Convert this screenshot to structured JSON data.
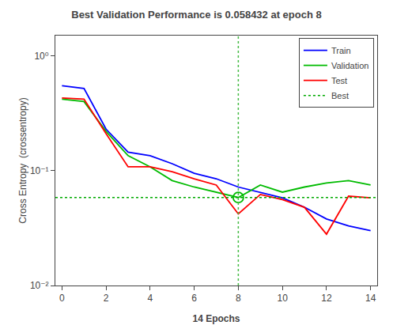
{
  "chart_data": {
    "type": "line",
    "title": "Best Validation Performance is 0.058432 at epoch 8",
    "xlabel": "14 Epochs",
    "ylabel": "Cross Entropy  (crossentropy)",
    "x": [
      0,
      1,
      2,
      3,
      4,
      5,
      6,
      7,
      8,
      9,
      10,
      11,
      12,
      13,
      14
    ],
    "series": [
      {
        "name": "Train",
        "color": "#0000FF",
        "line_style": "solid",
        "values": [
          0.55,
          0.52,
          0.23,
          0.145,
          0.135,
          0.115,
          0.095,
          0.085,
          0.072,
          0.065,
          0.058,
          0.048,
          0.038,
          0.033,
          0.03
        ]
      },
      {
        "name": "Validation",
        "color": "#00BB00",
        "line_style": "solid",
        "values": [
          0.42,
          0.4,
          0.22,
          0.135,
          0.108,
          0.082,
          0.072,
          0.065,
          0.058432,
          0.075,
          0.065,
          0.072,
          0.078,
          0.082,
          0.075
        ]
      },
      {
        "name": "Test",
        "color": "#FF0000",
        "line_style": "solid",
        "values": [
          0.43,
          0.42,
          0.21,
          0.108,
          0.108,
          0.098,
          0.085,
          0.075,
          0.042,
          0.062,
          0.056,
          0.048,
          0.028,
          0.06,
          0.058
        ]
      }
    ],
    "hline": {
      "name": "Best",
      "y": 0.058432,
      "color": "#00AA00",
      "line_style": "dotted"
    },
    "vline": {
      "x": 8,
      "color": "#44BB44",
      "line_style": "dotted"
    },
    "highlight": {
      "x": 8,
      "y": 0.058432,
      "color": "#00BB00",
      "marker": "circle-open"
    },
    "log": "y",
    "xlim": [
      -0.3,
      14.3
    ],
    "xticks": [
      0,
      2,
      4,
      6,
      8,
      10,
      12,
      14
    ],
    "ylim": [
      0.01,
      1.5
    ],
    "yticks": [
      {
        "value": 0.01,
        "label": "10⁻²"
      },
      {
        "value": 0.1,
        "label": "10⁻¹"
      },
      {
        "value": 1,
        "label": "10⁰"
      }
    ],
    "grid": false,
    "legend": "upper right"
  }
}
